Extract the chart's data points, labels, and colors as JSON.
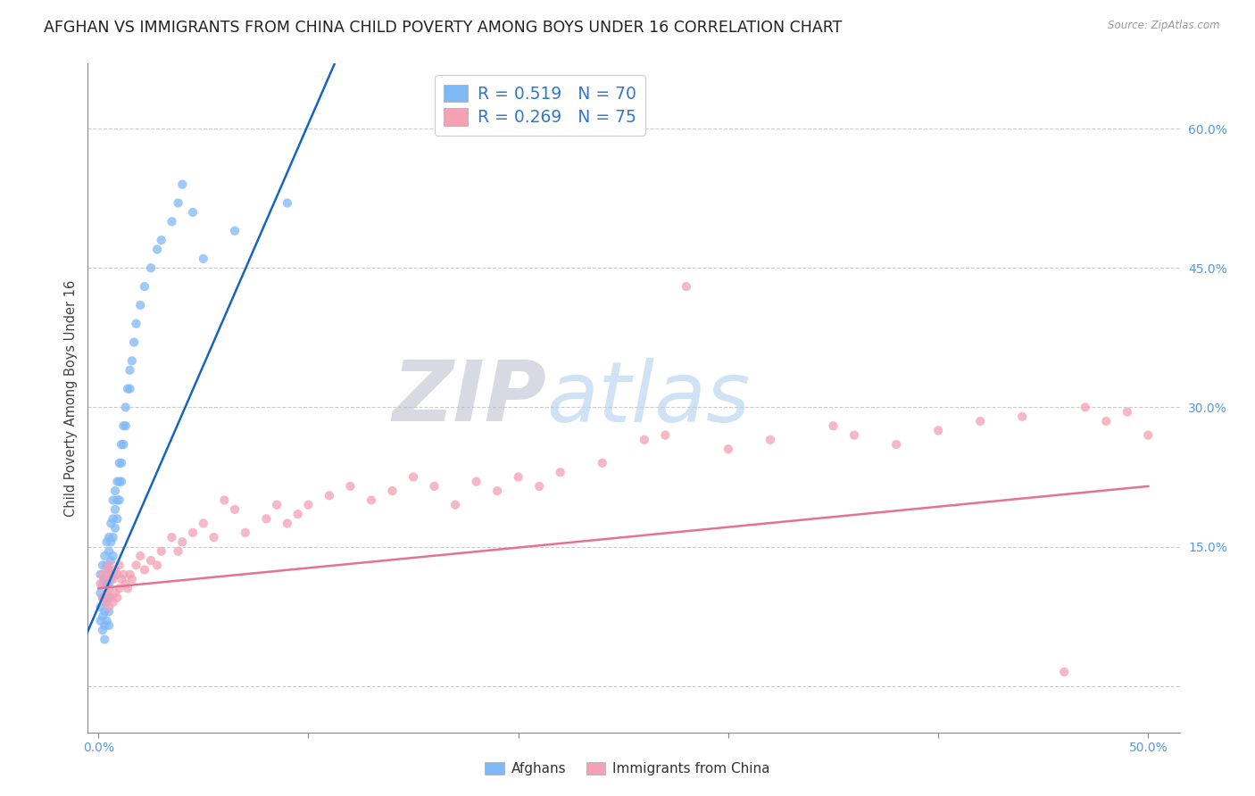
{
  "title": "AFGHAN VS IMMIGRANTS FROM CHINA CHILD POVERTY AMONG BOYS UNDER 16 CORRELATION CHART",
  "source": "Source: ZipAtlas.com",
  "ylabel": "Child Poverty Among Boys Under 16",
  "xlim": [
    -0.005,
    0.515
  ],
  "ylim": [
    -0.05,
    0.67
  ],
  "ytick_right_labels": [
    "",
    "15.0%",
    "30.0%",
    "45.0%",
    "60.0%"
  ],
  "ytick_right_values": [
    0.0,
    0.15,
    0.3,
    0.45,
    0.6
  ],
  "watermark_ZIP": "ZIP",
  "watermark_atlas": "atlas",
  "legend_line1": "R = 0.519   N = 70",
  "legend_line2": "R = 0.269   N = 75",
  "afghan_color": "#7EB8F7",
  "china_color": "#F4A0B5",
  "trend_afghan_color": "#1565C0",
  "trend_china_color": "#E57390",
  "background_color": "#FFFFFF",
  "grid_color": "#CCCCCC",
  "title_fontsize": 12.5,
  "axis_label_fontsize": 10.5,
  "tick_fontsize": 10,
  "legend_fontsize": 13.5,
  "bottom_legend_label1": "Afghans",
  "bottom_legend_label2": "Immigrants from China",
  "afghan_trend_m": 5.2,
  "afghan_trend_b": 0.085,
  "china_trend_m": 0.22,
  "china_trend_b": 0.105,
  "afghan_x": [
    0.001,
    0.001,
    0.001,
    0.001,
    0.002,
    0.002,
    0.002,
    0.002,
    0.002,
    0.003,
    0.003,
    0.003,
    0.003,
    0.003,
    0.003,
    0.004,
    0.004,
    0.004,
    0.004,
    0.004,
    0.005,
    0.005,
    0.005,
    0.005,
    0.005,
    0.005,
    0.005,
    0.006,
    0.006,
    0.006,
    0.006,
    0.007,
    0.007,
    0.007,
    0.007,
    0.007,
    0.008,
    0.008,
    0.008,
    0.009,
    0.009,
    0.009,
    0.01,
    0.01,
    0.01,
    0.011,
    0.011,
    0.011,
    0.012,
    0.012,
    0.013,
    0.013,
    0.014,
    0.015,
    0.015,
    0.016,
    0.017,
    0.018,
    0.02,
    0.022,
    0.025,
    0.028,
    0.03,
    0.035,
    0.038,
    0.04,
    0.045,
    0.05,
    0.065,
    0.09
  ],
  "afghan_y": [
    0.12,
    0.1,
    0.085,
    0.07,
    0.13,
    0.11,
    0.095,
    0.075,
    0.06,
    0.14,
    0.115,
    0.095,
    0.08,
    0.065,
    0.05,
    0.155,
    0.13,
    0.11,
    0.09,
    0.07,
    0.16,
    0.145,
    0.125,
    0.11,
    0.095,
    0.08,
    0.065,
    0.175,
    0.155,
    0.135,
    0.115,
    0.2,
    0.18,
    0.16,
    0.14,
    0.12,
    0.21,
    0.19,
    0.17,
    0.22,
    0.2,
    0.18,
    0.24,
    0.22,
    0.2,
    0.26,
    0.24,
    0.22,
    0.28,
    0.26,
    0.3,
    0.28,
    0.32,
    0.34,
    0.32,
    0.35,
    0.37,
    0.39,
    0.41,
    0.43,
    0.45,
    0.47,
    0.48,
    0.5,
    0.52,
    0.54,
    0.51,
    0.46,
    0.49,
    0.52
  ],
  "china_x": [
    0.001,
    0.002,
    0.002,
    0.003,
    0.003,
    0.004,
    0.004,
    0.005,
    0.005,
    0.005,
    0.006,
    0.006,
    0.007,
    0.007,
    0.008,
    0.008,
    0.009,
    0.009,
    0.01,
    0.01,
    0.011,
    0.012,
    0.013,
    0.014,
    0.015,
    0.016,
    0.018,
    0.02,
    0.022,
    0.025,
    0.028,
    0.03,
    0.035,
    0.038,
    0.04,
    0.045,
    0.05,
    0.055,
    0.06,
    0.065,
    0.07,
    0.08,
    0.085,
    0.09,
    0.095,
    0.1,
    0.11,
    0.12,
    0.13,
    0.14,
    0.15,
    0.16,
    0.17,
    0.18,
    0.19,
    0.2,
    0.21,
    0.22,
    0.24,
    0.26,
    0.27,
    0.28,
    0.3,
    0.32,
    0.35,
    0.36,
    0.38,
    0.4,
    0.42,
    0.44,
    0.46,
    0.47,
    0.48,
    0.49,
    0.5
  ],
  "china_y": [
    0.11,
    0.12,
    0.095,
    0.115,
    0.09,
    0.125,
    0.1,
    0.13,
    0.105,
    0.085,
    0.12,
    0.095,
    0.115,
    0.09,
    0.125,
    0.1,
    0.12,
    0.095,
    0.13,
    0.105,
    0.115,
    0.12,
    0.11,
    0.105,
    0.12,
    0.115,
    0.13,
    0.14,
    0.125,
    0.135,
    0.13,
    0.145,
    0.16,
    0.145,
    0.155,
    0.165,
    0.175,
    0.16,
    0.2,
    0.19,
    0.165,
    0.18,
    0.195,
    0.175,
    0.185,
    0.195,
    0.205,
    0.215,
    0.2,
    0.21,
    0.225,
    0.215,
    0.195,
    0.22,
    0.21,
    0.225,
    0.215,
    0.23,
    0.24,
    0.265,
    0.27,
    0.43,
    0.255,
    0.265,
    0.28,
    0.27,
    0.26,
    0.275,
    0.285,
    0.29,
    0.015,
    0.3,
    0.285,
    0.295,
    0.27
  ]
}
